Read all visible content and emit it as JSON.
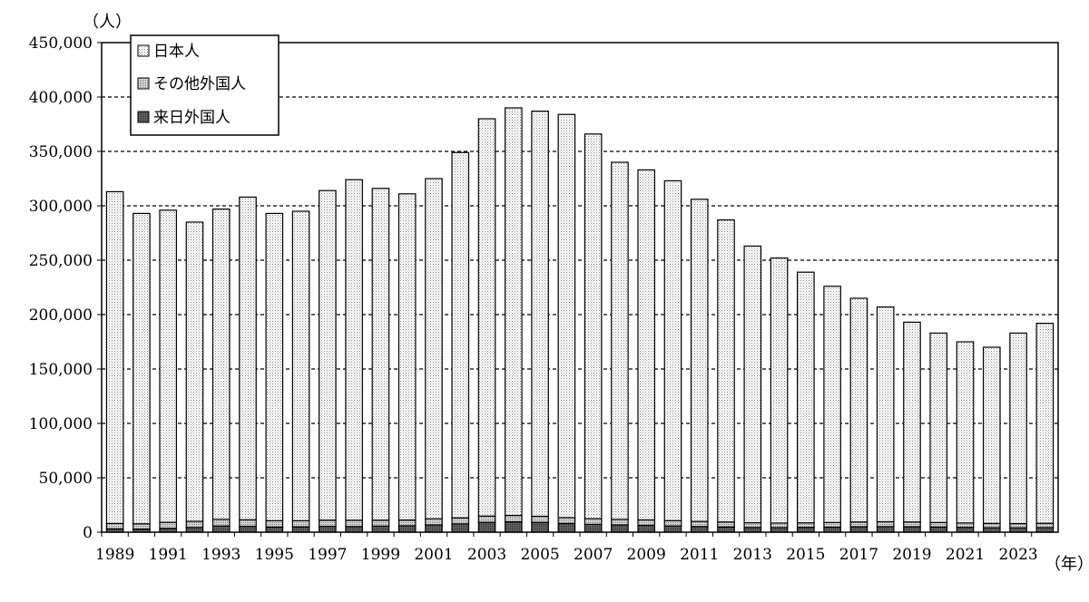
{
  "chart_data": {
    "type": "bar",
    "stacked": true,
    "y_unit_label": "（人）",
    "x_unit_label": "（年）",
    "ylim": [
      0,
      450000
    ],
    "y_ticks": [
      0,
      50000,
      100000,
      150000,
      200000,
      250000,
      300000,
      350000,
      400000,
      450000
    ],
    "y_tick_labels": [
      "0",
      "50,000",
      "100,000",
      "150,000",
      "200,000",
      "250,000",
      "300,000",
      "350,000",
      "400,000",
      "450,000"
    ],
    "grid": "horizontal dashed",
    "legend_position": "top-left",
    "categories": [
      "1989",
      "1990",
      "1991",
      "1992",
      "1993",
      "1994",
      "1995",
      "1996",
      "1997",
      "1998",
      "1999",
      "2000",
      "2001",
      "2002",
      "2003",
      "2004",
      "2005",
      "2006",
      "2007",
      "2008",
      "2009",
      "2010",
      "2011",
      "2012",
      "2013",
      "2014",
      "2015",
      "2016",
      "2017",
      "2018",
      "2019",
      "2020",
      "2021",
      "2022",
      "2023",
      "2024"
    ],
    "x_tick_labels": [
      "1989",
      "",
      "1991",
      "",
      "1993",
      "",
      "1995",
      "",
      "1997",
      "",
      "1999",
      "",
      "2001",
      "",
      "2003",
      "",
      "2005",
      "",
      "2007",
      "",
      "2009",
      "",
      "2011",
      "",
      "2013",
      "",
      "2015",
      "",
      "2017",
      "",
      "2019",
      "",
      "2021",
      "",
      "2023",
      ""
    ],
    "series": [
      {
        "name": "来日外国人",
        "color": "#555555",
        "values": [
          3000,
          2800,
          3600,
          4300,
          5700,
          5400,
          4700,
          4900,
          5400,
          5200,
          5600,
          5900,
          6700,
          7600,
          9000,
          9500,
          9000,
          8000,
          7200,
          6700,
          6300,
          5700,
          5200,
          4800,
          4300,
          4200,
          4400,
          4600,
          5000,
          5100,
          5000,
          4700,
          4400,
          4100,
          4000,
          4200
        ]
      },
      {
        "name": "その他外国人",
        "color": "#c8c8c8",
        "values": [
          5000,
          4900,
          5500,
          5700,
          6100,
          6000,
          5800,
          5600,
          5700,
          5800,
          5500,
          5300,
          5600,
          5600,
          5800,
          5900,
          5600,
          5400,
          5200,
          5100,
          5000,
          4900,
          4700,
          4600,
          4400,
          4200,
          4200,
          4300,
          4400,
          4500,
          4400,
          4200,
          4100,
          4000,
          3900,
          4000
        ]
      },
      {
        "name": "日本人",
        "color": "#f0f0f0",
        "values": [
          305000,
          285300,
          286900,
          275000,
          285200,
          296600,
          282500,
          284500,
          302900,
          313000,
          304900,
          299800,
          312700,
          335800,
          365200,
          374600,
          372400,
          370600,
          353600,
          328200,
          321700,
          312400,
          296100,
          277600,
          254300,
          243600,
          230400,
          217100,
          205600,
          197400,
          183600,
          174100,
          166500,
          161900,
          175100,
          183800
        ]
      }
    ],
    "totals": [
      313000,
      293000,
      296000,
      285000,
      297000,
      308000,
      293000,
      295000,
      314000,
      324000,
      316000,
      311000,
      325000,
      349000,
      380000,
      390000,
      387000,
      384000,
      366000,
      340000,
      333000,
      323000,
      306000,
      287000,
      263000,
      252000,
      239000,
      226000,
      215000,
      207000,
      193000,
      183000,
      175000,
      170000,
      183000,
      192000
    ]
  }
}
